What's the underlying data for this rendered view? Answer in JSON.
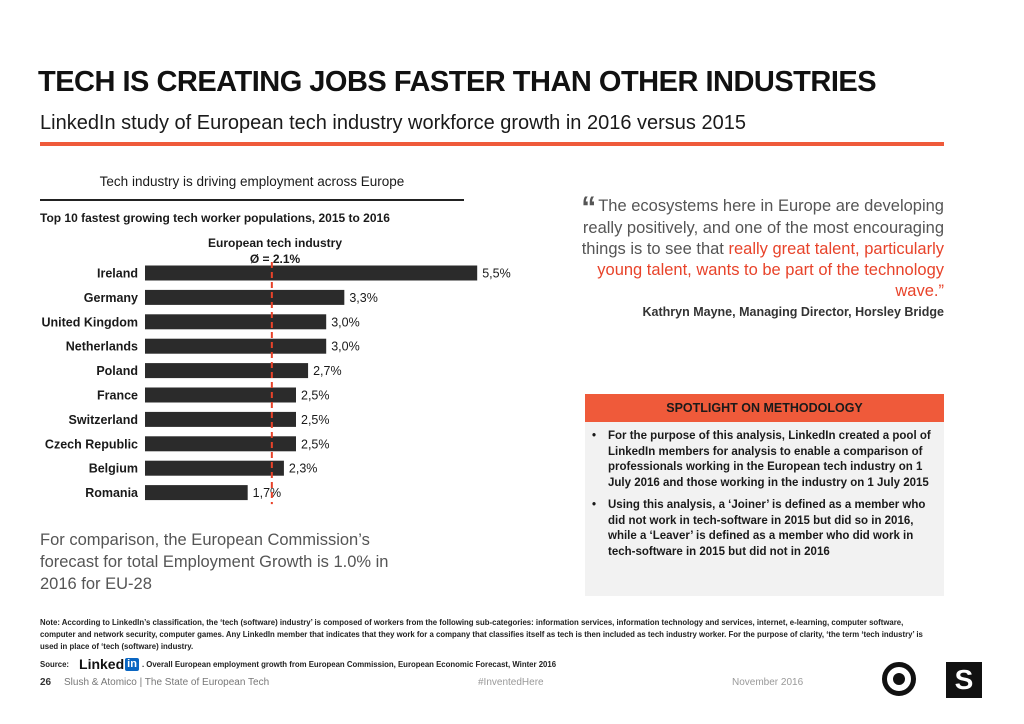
{
  "header": {
    "title": "TECH IS CREATING JOBS FASTER THAN OTHER INDUSTRIES",
    "subtitle": "LinkedIn study of European tech industry workforce growth in 2016 versus 2015"
  },
  "chart_panel": {
    "heading": "Tech industry is driving employment across Europe",
    "subheading": "Top 10 fastest growing tech worker populations, 2015 to 2016",
    "average_label_line1": "European tech industry",
    "average_label_line2": "Ø = 2.1%"
  },
  "chart_data": {
    "type": "bar",
    "orientation": "horizontal",
    "categories": [
      "Ireland",
      "Germany",
      "United Kingdom",
      "Netherlands",
      "Poland",
      "France",
      "Switzerland",
      "Czech Republic",
      "Belgium",
      "Romania"
    ],
    "values": [
      5.5,
      3.3,
      3.0,
      3.0,
      2.7,
      2.5,
      2.5,
      2.5,
      2.3,
      1.7
    ],
    "value_labels": [
      "5,5%",
      "3,3%",
      "3,0%",
      "3,0%",
      "2,7%",
      "2,5%",
      "2,5%",
      "2,5%",
      "2,3%",
      "1,7%"
    ],
    "reference_line": {
      "value": 2.1
    },
    "bar_color": "#2b2b2b",
    "reference_color": "#e8432a",
    "title": "Top 10 fastest growing tech worker populations, 2015 to 2016"
  },
  "comparison": {
    "text": "For comparison, the European Commission’s forecast for total Employment Growth is 1.0% in 2016 for EU-28"
  },
  "quote": {
    "mark": "“",
    "text_plain": "The ecosystems here in Europe are developing really positively, and one of the most encouraging things is to see that ",
    "text_highlight": "really great talent, particularly young talent, wants to be part of the technology wave.”",
    "author": "Kathryn Mayne,  Managing Director, Horsley Bridge"
  },
  "methodology": {
    "title": "SPOTLIGHT ON METHODOLOGY",
    "bullets": [
      "For the purpose of this analysis, LinkedIn created a pool of LinkedIn members for analysis to enable a comparison of professionals working in the European tech industry on 1 July 2016 and those working in the industry on 1 July 2015",
      "Using this analysis, a ‘Joiner’ is defined as a member who did not work in tech-software in 2015 but did so in 2016, while a ‘Leaver’ is defined as a member who did work in tech-software in 2015 but did not in 2016"
    ]
  },
  "footnote": {
    "note": "Note: According to LinkedIn’s classification, the ‘tech (software) industry’ is composed of workers from the following sub-categories: information services, information technology and services, internet, e-learning, computer software, computer and network security, computer games. Any LinkedIn member that indicates that they work for a company that classifies itself as tech is then included as tech industry worker. For the purpose of clarity, ‘the term ‘tech industry’ is used in place of ‘tech (software) industry.",
    "source_label": "Source:",
    "source_logo_text": "Linked",
    "source_logo_in": "in",
    "source_text": ". Overall European employment growth from European Commission, European Economic Forecast, Winter 2016"
  },
  "footer": {
    "page_number": "26",
    "publisher": "Slush & Atomico  |  The State of European Tech",
    "hashtag": "#InventedHere",
    "date": "November 2016",
    "logo_right": "S"
  }
}
